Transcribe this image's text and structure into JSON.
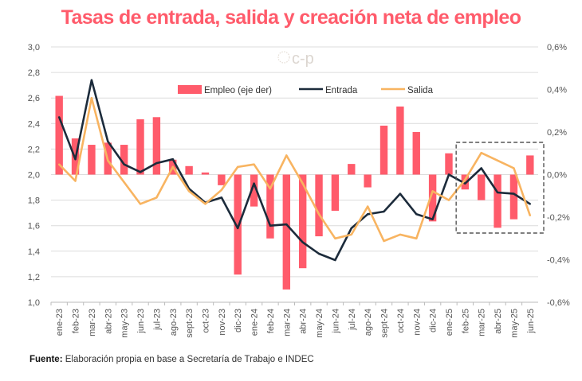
{
  "title": "Tasas de entrada, salida y creación neta de empleo",
  "logo_text": "c-p",
  "footer": {
    "label": "Fuente:",
    "text": " Elaboración propia en base a Secretaría de Trabajo e INDEC"
  },
  "chart_data": {
    "type": "bar+line",
    "categories": [
      "ene-23",
      "feb-23",
      "mar-23",
      "abr-23",
      "may-23",
      "jun-23",
      "jul-23",
      "ago-23",
      "sept-23",
      "oct-23",
      "nov-23",
      "dic-23",
      "ene-24",
      "feb-24",
      "mar-24",
      "abr-24",
      "may-24",
      "jun-24",
      "jul-24",
      "ago-24",
      "sept-24",
      "oct-24",
      "nov-24",
      "dic-24",
      "ene-25",
      "feb-25",
      "mar-25",
      "abr-25",
      "may-25",
      "jun-25"
    ],
    "series": [
      {
        "name": "Empleo (eje der)",
        "type": "bar",
        "axis": "right",
        "color": "#ff5b6b",
        "values": [
          0.37,
          0.17,
          0.14,
          0.15,
          0.14,
          0.26,
          0.27,
          0.07,
          0.04,
          0.01,
          -0.05,
          -0.47,
          -0.15,
          -0.3,
          -0.54,
          -0.44,
          -0.29,
          -0.17,
          0.05,
          -0.06,
          0.23,
          0.32,
          0.2,
          -0.22,
          0.1,
          -0.07,
          -0.12,
          -0.25,
          -0.21,
          0.09
        ]
      },
      {
        "name": "Entrada",
        "type": "line",
        "axis": "left",
        "color": "#1c2b3b",
        "values": [
          2.45,
          2.12,
          2.74,
          2.26,
          2.08,
          2.02,
          2.09,
          2.12,
          1.89,
          1.78,
          1.82,
          1.58,
          1.93,
          1.6,
          1.61,
          1.47,
          1.38,
          1.33,
          1.58,
          1.69,
          1.71,
          1.85,
          1.69,
          1.65,
          2.0,
          1.93,
          2.05,
          1.86,
          1.85,
          1.77
        ]
      },
      {
        "name": "Salida",
        "type": "line",
        "axis": "left",
        "color": "#f8b461",
        "values": [
          2.08,
          1.95,
          2.6,
          2.11,
          1.94,
          1.77,
          1.82,
          2.06,
          1.87,
          1.77,
          1.88,
          2.06,
          2.08,
          1.89,
          2.15,
          1.93,
          1.69,
          1.5,
          1.53,
          1.75,
          1.48,
          1.53,
          1.5,
          1.87,
          1.8,
          1.96,
          2.17,
          2.11,
          2.05,
          1.68
        ]
      }
    ],
    "left_axis": {
      "range": [
        1.0,
        3.0
      ],
      "ticks": [
        "1,0",
        "1,2",
        "1,4",
        "1,6",
        "1,8",
        "2,0",
        "2,2",
        "2,4",
        "2,6",
        "2,8",
        "3,0"
      ]
    },
    "right_axis": {
      "range": [
        -0.6,
        0.6
      ],
      "unit": "%",
      "ticks": [
        "-0,6%",
        "-0,4%",
        "-0,2%",
        "0,0%",
        "0,2%",
        "0,4%",
        "0,6%"
      ]
    },
    "grid": true,
    "legend_position": "top-center",
    "highlight_box": {
      "from": "feb-25",
      "to": "jun-25",
      "style": "dashed"
    }
  }
}
